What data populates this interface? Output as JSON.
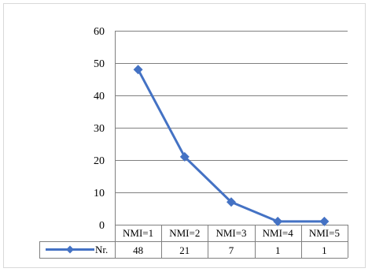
{
  "chart_data": {
    "type": "line",
    "categories": [
      "NMI=1",
      "NMI=2",
      "NMI=3",
      "NMI=4",
      "NMI=5"
    ],
    "series": [
      {
        "name": "Nr.",
        "values": [
          48,
          21,
          7,
          1,
          1
        ]
      }
    ],
    "title": "",
    "xlabel": "",
    "ylabel": "",
    "ylim": [
      0,
      60
    ],
    "yticks": [
      "0",
      "10",
      "20",
      "30",
      "40",
      "50",
      "60"
    ],
    "grid": true,
    "data_table": true,
    "legend": "data-table-row-left",
    "colors": {
      "series": "#4472C4",
      "gridline": "#808080",
      "axis": "#808080",
      "frame": "#d9d9d9"
    },
    "marker": "diamond"
  }
}
